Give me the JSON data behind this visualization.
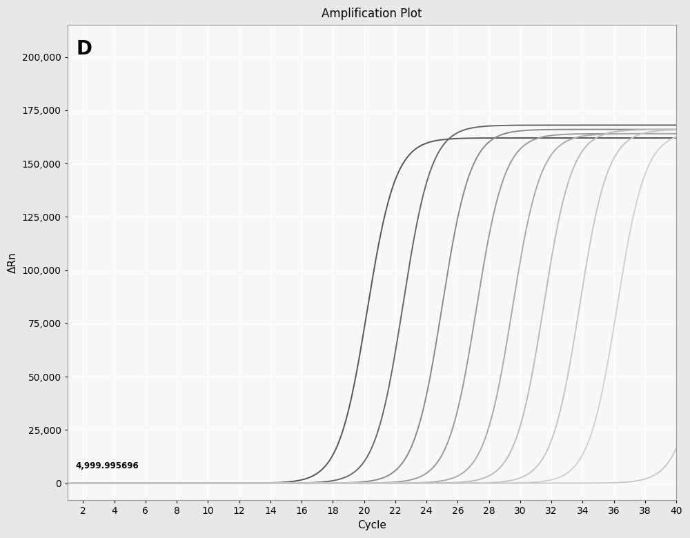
{
  "title": "Amplification Plot",
  "xlabel": "Cycle",
  "ylabel": "ΔRn",
  "panel_label": "D",
  "annotation": "4,999.995696",
  "xlim": [
    1,
    40
  ],
  "ylim": [
    -8000,
    215000
  ],
  "yticks": [
    0,
    25000,
    50000,
    75000,
    100000,
    125000,
    150000,
    175000,
    200000
  ],
  "xticks": [
    2,
    4,
    6,
    8,
    10,
    12,
    14,
    16,
    18,
    20,
    22,
    24,
    26,
    28,
    30,
    32,
    34,
    36,
    38,
    40
  ],
  "background_color": "#e8e8e8",
  "plot_bg_color": "#f8f8f8",
  "grid_color": "#ffffff",
  "curves": [
    {
      "midpoint": 20.2,
      "top": 162000,
      "steepness": 1.1,
      "color": "#555555",
      "lw": 1.4
    },
    {
      "midpoint": 22.5,
      "top": 168000,
      "steepness": 1.1,
      "color": "#666666",
      "lw": 1.4
    },
    {
      "midpoint": 25.0,
      "top": 166000,
      "steepness": 1.1,
      "color": "#888888",
      "lw": 1.4
    },
    {
      "midpoint": 27.2,
      "top": 164000,
      "steepness": 1.1,
      "color": "#999999",
      "lw": 1.4
    },
    {
      "midpoint": 29.5,
      "top": 164000,
      "steepness": 1.1,
      "color": "#aaaaaa",
      "lw": 1.4
    },
    {
      "midpoint": 31.5,
      "top": 166000,
      "steepness": 1.1,
      "color": "#bbbbbb",
      "lw": 1.4
    },
    {
      "midpoint": 33.8,
      "top": 166000,
      "steepness": 1.1,
      "color": "#c5c5c5",
      "lw": 1.4
    },
    {
      "midpoint": 36.2,
      "top": 165000,
      "steepness": 1.1,
      "color": "#d0d0d0",
      "lw": 1.4
    },
    {
      "midpoint": 42.0,
      "top": 165000,
      "steepness": 1.1,
      "color": "#c8c8c8",
      "lw": 1.4
    }
  ],
  "title_fontsize": 12,
  "label_fontsize": 11,
  "tick_fontsize": 10,
  "panel_label_fontsize": 20
}
